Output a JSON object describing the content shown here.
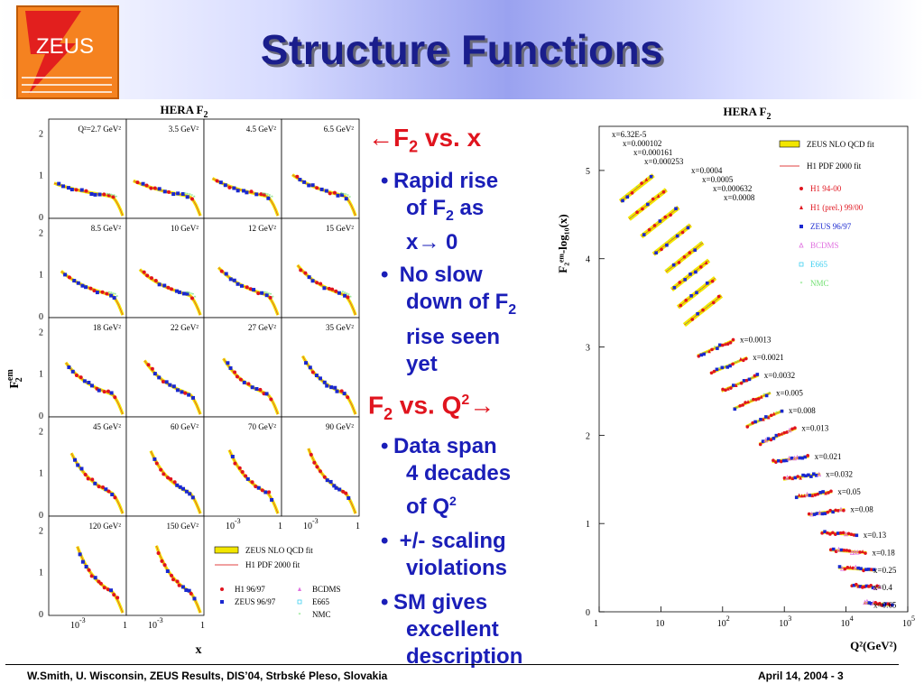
{
  "slide": {
    "title": "Structure Functions",
    "logo_text": "ZEUS",
    "footer_left": "W.Smith, U. Wisconsin, ZEUS Results, DIS’04, Strbské Pleso, Slovakia",
    "footer_right": "April 14, 2004  -  3"
  },
  "bullets": {
    "head1_pre": "←F",
    "head1_sub": "2",
    "head1_post": " vs. x",
    "item1a": "Rapid rise",
    "item1b_pre": "of F",
    "item1b_sub": "2",
    "item1b_post": " as",
    "item1c": "x→ 0",
    "item2a": "No slow",
    "item2b_pre": "down of F",
    "item2b_sub": "2",
    "item2c": "rise seen",
    "item2d": "yet",
    "head2_pre": "F",
    "head2_sub": "2",
    "head2_mid": " vs. Q",
    "head2_sup": "2",
    "head2_post": "→",
    "item3a": "Data span",
    "item3b": "4 decades",
    "item3c_pre": "of Q",
    "item3c_sup": "2",
    "item4a": "+/- scaling",
    "item4b": "violations",
    "item5a": "SM gives",
    "item5b": "excellent",
    "item5c": "description",
    "dot": "•"
  },
  "colors": {
    "title": "#1a1e8c",
    "bullet_text": "#1a1eb8",
    "bullet_head": "#e0141e",
    "fit_band": "#f2e600",
    "h1": "#e0141e",
    "zeus": "#1a28d0",
    "bcdms": "#e070e0",
    "e665": "#40d0f0",
    "nmc": "#70e070",
    "logo": "#f58220"
  },
  "chart_data": [
    {
      "type": "scatter",
      "title_pre": "HERA F",
      "title_sub": "2",
      "xlabel": "x",
      "ylabel_main": "F",
      "ylabel_sup": "em",
      "ylabel_sub": "2",
      "xscale": "log",
      "xtick_labels": [
        "10",
        "-3",
        "1"
      ],
      "ytick_labels": [
        "0",
        "1",
        "2"
      ],
      "ylim": [
        0,
        2.2
      ],
      "xlim": [
        1e-05,
        1
      ],
      "q2_bins": [
        {
          "label": "Q²=2.7 GeV²",
          "q2": 2.7
        },
        {
          "label": "3.5 GeV²",
          "q2": 3.5
        },
        {
          "label": "4.5 GeV²",
          "q2": 4.5
        },
        {
          "label": "6.5 GeV²",
          "q2": 6.5
        },
        {
          "label": "8.5 GeV²",
          "q2": 8.5
        },
        {
          "label": "10 GeV²",
          "q2": 10
        },
        {
          "label": "12 GeV²",
          "q2": 12
        },
        {
          "label": "15 GeV²",
          "q2": 15
        },
        {
          "label": "18 GeV²",
          "q2": 18
        },
        {
          "label": "22 GeV²",
          "q2": 22
        },
        {
          "label": "27 GeV²",
          "q2": 27
        },
        {
          "label": "35 GeV²",
          "q2": 35
        },
        {
          "label": "45 GeV²",
          "q2": 45
        },
        {
          "label": "60 GeV²",
          "q2": 60
        },
        {
          "label": "70 GeV²",
          "q2": 70
        },
        {
          "label": "90 GeV²",
          "q2": 90
        },
        {
          "label": "120 GeV²",
          "q2": 120
        },
        {
          "label": "150 GeV²",
          "q2": 150
        }
      ],
      "legend": [
        {
          "name": "ZEUS NLO QCD fit",
          "kind": "band"
        },
        {
          "name": "H1 PDF 2000 fit",
          "kind": "line"
        },
        {
          "name": "H1 96/97",
          "kind": "circle"
        },
        {
          "name": "ZEUS 96/97",
          "kind": "square"
        },
        {
          "name": "BCDMS",
          "kind": "triangle"
        },
        {
          "name": "E665",
          "kind": "open-square"
        },
        {
          "name": "NMC",
          "kind": "star"
        }
      ]
    },
    {
      "type": "scatter",
      "title_pre": "HERA F",
      "title_sub": "2",
      "xlabel": "Q²(GeV²)",
      "ylabel": "F₂ᵉᵐ-log₁₀(x)",
      "xscale": "log",
      "xlim": [
        1,
        100000
      ],
      "ylim": [
        0,
        5.5
      ],
      "xtick_labels": [
        "1",
        "10",
        "10",
        "10",
        "10",
        "10"
      ],
      "xtick_exps": [
        "",
        "",
        "2",
        "3",
        "4",
        "5"
      ],
      "ytick_labels": [
        "0",
        "1",
        "2",
        "3",
        "4",
        "5"
      ],
      "x_bins": [
        {
          "label": "x=6.32E-5",
          "x": 6.32e-05
        },
        {
          "label": "x=0.000102",
          "x": 0.000102
        },
        {
          "label": "x=0.000161",
          "x": 0.000161
        },
        {
          "label": "x=0.000253",
          "x": 0.000253
        },
        {
          "label": "x=0.0004",
          "x": 0.0004
        },
        {
          "label": "x=0.0005",
          "x": 0.0005
        },
        {
          "label": "x=0.000632",
          "x": 0.000632
        },
        {
          "label": "x=0.0008",
          "x": 0.0008
        },
        {
          "label": "x=0.0013",
          "x": 0.0013
        },
        {
          "label": "x=0.0021",
          "x": 0.0021
        },
        {
          "label": "x=0.0032",
          "x": 0.0032
        },
        {
          "label": "x=0.005",
          "x": 0.005
        },
        {
          "label": "x=0.008",
          "x": 0.008
        },
        {
          "label": "x=0.013",
          "x": 0.013
        },
        {
          "label": "x=0.021",
          "x": 0.021
        },
        {
          "label": "x=0.032",
          "x": 0.032
        },
        {
          "label": "x=0.05",
          "x": 0.05
        },
        {
          "label": "x=0.08",
          "x": 0.08
        },
        {
          "label": "x=0.13",
          "x": 0.13
        },
        {
          "label": "x=0.18",
          "x": 0.18
        },
        {
          "label": "x=0.25",
          "x": 0.25
        },
        {
          "label": "x=0.4",
          "x": 0.4
        },
        {
          "label": "x=0.65",
          "x": 0.65
        }
      ],
      "legend": [
        {
          "name": "ZEUS NLO QCD fit",
          "kind": "band"
        },
        {
          "name": "H1 PDF 2000 fit",
          "kind": "line"
        },
        {
          "name": "H1 94-00",
          "kind": "circle"
        },
        {
          "name": "H1 (prel.) 99/00",
          "kind": "triangle"
        },
        {
          "name": "ZEUS 96/97",
          "kind": "square"
        },
        {
          "name": "BCDMS",
          "kind": "open-triangle"
        },
        {
          "name": "E665",
          "kind": "open-square"
        },
        {
          "name": "NMC",
          "kind": "star"
        }
      ]
    }
  ]
}
